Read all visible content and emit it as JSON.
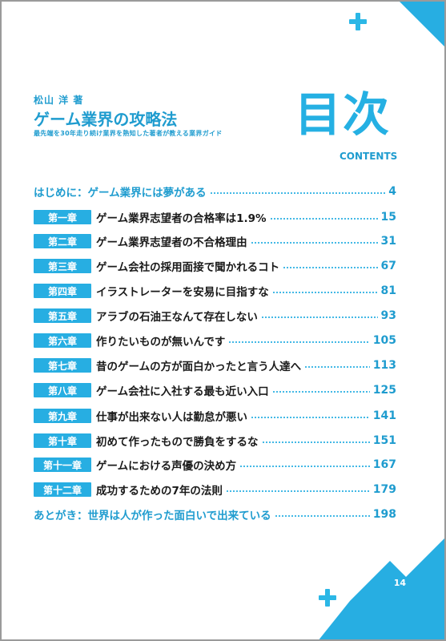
{
  "header": {
    "author": "松山 洋 著",
    "title": "ゲーム業界の攻略法",
    "subtitle": "最先端を30年走り続け業界を熟知した著者が教える業界ガイド",
    "mokuji": "目次",
    "contents_label": "CONTENTS"
  },
  "toc": {
    "intro": {
      "label": "はじめに：ゲーム業界には夢がある",
      "page": "4"
    },
    "chapters": [
      {
        "chip": "第一章",
        "label": "ゲーム業界志望者の合格率は1.9%",
        "page": "15"
      },
      {
        "chip": "第二章",
        "label": "ゲーム業界志望者の不合格理由",
        "page": "31"
      },
      {
        "chip": "第三章",
        "label": "ゲーム会社の採用面接で聞かれるコト",
        "page": "67"
      },
      {
        "chip": "第四章",
        "label": "イラストレーターを安易に目指すな",
        "page": "81"
      },
      {
        "chip": "第五章",
        "label": "アラブの石油王なんて存在しない",
        "page": "93"
      },
      {
        "chip": "第六章",
        "label": "作りたいものが無いんです",
        "page": "105"
      },
      {
        "chip": "第七章",
        "label": "昔のゲームの方が面白かったと言う人達へ",
        "page": "113"
      },
      {
        "chip": "第八章",
        "label": "ゲーム会社に入社する最も近い入口",
        "page": "125"
      },
      {
        "chip": "第九章",
        "label": "仕事が出来ない人は勤怠が悪い",
        "page": "141"
      },
      {
        "chip": "第十章",
        "label": "初めて作ったもので勝負をするな",
        "page": "151"
      },
      {
        "chip": "第十一章",
        "label": "ゲームにおける声優の決め方",
        "page": "167"
      },
      {
        "chip": "第十二章",
        "label": "成功するための7年の法則",
        "page": "179"
      }
    ],
    "outro": {
      "label": "あとがき：世界は人が作った面白いで出来ている",
      "page": "198"
    }
  },
  "footer": {
    "page_number": "14"
  },
  "colors": {
    "accent": "#27aee2",
    "accent_text": "#1f9ccf"
  }
}
